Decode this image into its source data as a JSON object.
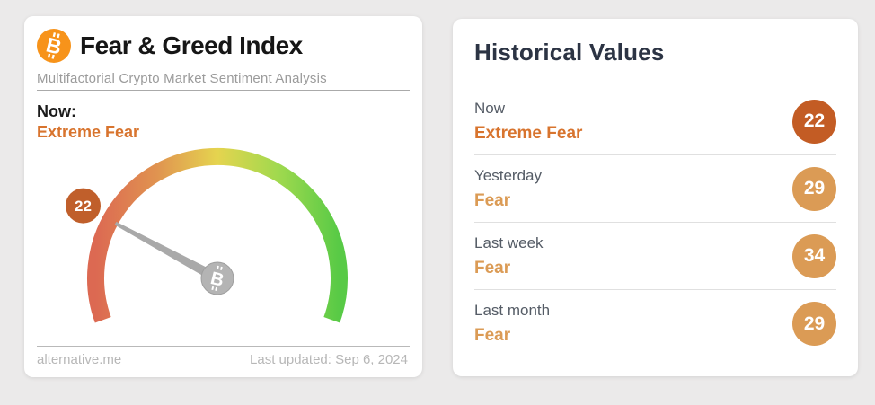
{
  "theme": {
    "extreme_text": "#d8742e",
    "fear_text": "#db9b55",
    "badge_extreme": "#c35c24",
    "badge_fear": "#db9b55",
    "bitcoin_orange": "#f7931a",
    "gauge_badge": "#c05f2b",
    "needle_gray": "#a9a9a9",
    "pivot_gray": "#b4b4b4"
  },
  "index_card": {
    "title": "Fear & Greed Index",
    "subtitle": "Multifactorial Crypto Market Sentiment Analysis",
    "now_label": "Now:",
    "now_sentiment": "Extreme Fear",
    "gauge": {
      "value": 22,
      "min": 0,
      "max": 100,
      "value_label": "22",
      "colors": [
        "#dc6952",
        "#e09350",
        "#e5d44f",
        "#a0d94e",
        "#58ca46"
      ]
    },
    "footer": {
      "source": "alternative.me",
      "last_updated": "Last updated: Sep 6, 2024"
    }
  },
  "historical_card": {
    "title": "Historical Values",
    "rows": [
      {
        "label": "Now",
        "sentiment": "Extreme Fear",
        "value": "22"
      },
      {
        "label": "Yesterday",
        "sentiment": "Fear",
        "value": "29"
      },
      {
        "label": "Last week",
        "sentiment": "Fear",
        "value": "34"
      },
      {
        "label": "Last month",
        "sentiment": "Fear",
        "value": "29"
      }
    ]
  }
}
